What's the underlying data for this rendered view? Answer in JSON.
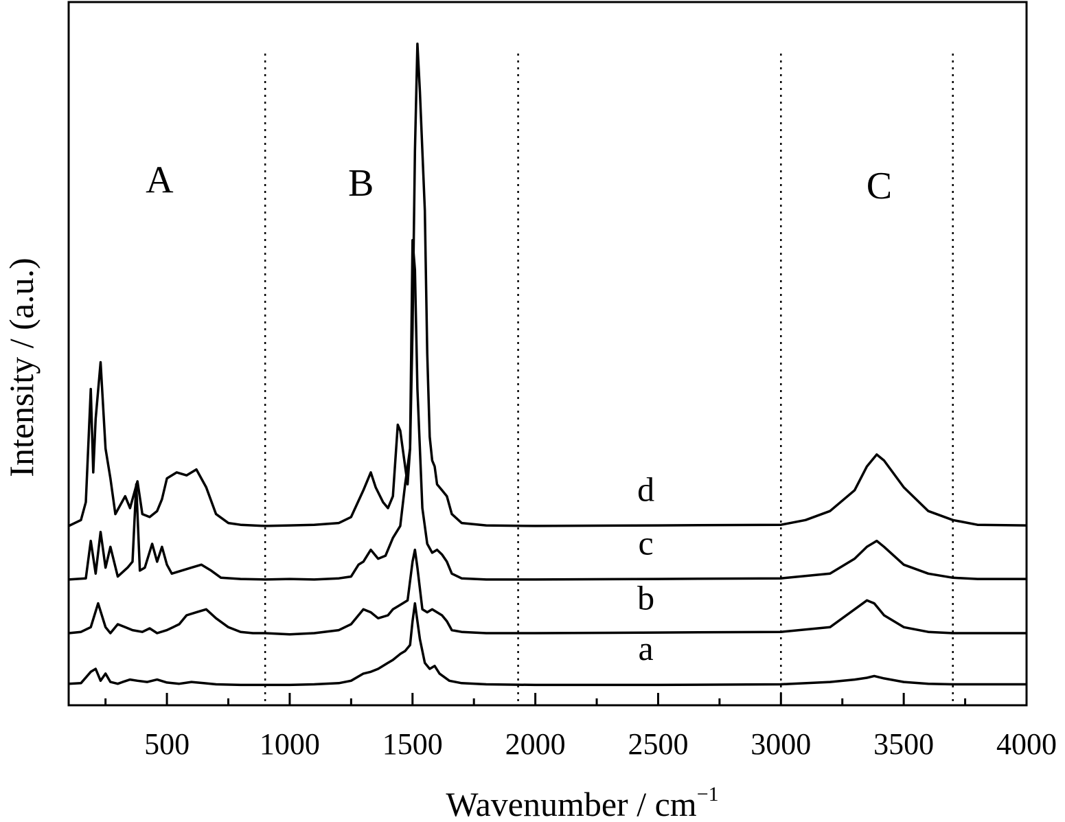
{
  "chart_data": {
    "type": "line",
    "xlabel": "Wavenumber / cm",
    "xlabel_superscript": "−1",
    "ylabel": "Intensity / (a.u.)",
    "xlim": [
      100,
      4000
    ],
    "ylim": [
      0,
      1150
    ],
    "x_ticks": [
      500,
      1000,
      1500,
      2000,
      2500,
      3000,
      3500,
      4000
    ],
    "minor_tick_step": 250,
    "y_ticks_shown": false,
    "grid": false,
    "legend": "none",
    "line_color": "#000000",
    "region_dividers": [
      900,
      1930,
      3000,
      3700
    ],
    "regions": [
      {
        "label": "A",
        "x": 470,
        "y": 830
      },
      {
        "label": "B",
        "x": 1290,
        "y": 825
      },
      {
        "label": "C",
        "x": 3400,
        "y": 820
      }
    ],
    "series": [
      {
        "name": "a",
        "label_x": 2450,
        "label_y": 45,
        "x": [
          100,
          150,
          190,
          210,
          230,
          250,
          270,
          290,
          300,
          320,
          350,
          380,
          420,
          460,
          500,
          550,
          600,
          650,
          700,
          800,
          900,
          1000,
          1100,
          1200,
          1250,
          1300,
          1330,
          1360,
          1400,
          1420,
          1450,
          1470,
          1490,
          1500,
          1510,
          1530,
          1550,
          1570,
          1590,
          1610,
          1650,
          1700,
          1800,
          2000,
          2500,
          3000,
          3200,
          3300,
          3350,
          3380,
          3420,
          3500,
          3600,
          3700,
          3800,
          4000
        ],
        "y": [
          5,
          6,
          25,
          30,
          10,
          22,
          8,
          6,
          5,
          8,
          12,
          10,
          8,
          12,
          7,
          5,
          8,
          6,
          4,
          3,
          3,
          3,
          4,
          6,
          10,
          22,
          25,
          30,
          40,
          45,
          55,
          60,
          70,
          110,
          140,
          80,
          40,
          30,
          35,
          22,
          10,
          6,
          4,
          3,
          3,
          4,
          8,
          12,
          15,
          18,
          14,
          8,
          5,
          4,
          4,
          4
        ]
      },
      {
        "name": "b",
        "label_x": 2450,
        "label_y": 130,
        "x": [
          100,
          150,
          190,
          220,
          250,
          270,
          300,
          330,
          360,
          400,
          430,
          460,
          500,
          550,
          580,
          620,
          660,
          700,
          750,
          800,
          850,
          900,
          1000,
          1100,
          1200,
          1250,
          1300,
          1330,
          1360,
          1400,
          1420,
          1440,
          1460,
          1480,
          1500,
          1510,
          1520,
          1540,
          1560,
          1580,
          1600,
          1620,
          1640,
          1660,
          1700,
          1800,
          2000,
          2500,
          3000,
          3200,
          3300,
          3350,
          3380,
          3420,
          3500,
          3600,
          3700,
          3800,
          4000
        ],
        "y": [
          90,
          92,
          100,
          140,
          100,
          90,
          105,
          100,
          95,
          92,
          98,
          90,
          95,
          105,
          120,
          125,
          130,
          115,
          100,
          92,
          90,
          90,
          88,
          90,
          95,
          105,
          130,
          125,
          115,
          120,
          130,
          135,
          140,
          145,
          210,
          230,
          200,
          130,
          125,
          130,
          125,
          120,
          110,
          95,
          92,
          90,
          90,
          91,
          92,
          100,
          130,
          145,
          140,
          120,
          100,
          92,
          90,
          90,
          90
        ]
      },
      {
        "name": "c",
        "label_x": 2450,
        "label_y": 222,
        "x": [
          100,
          170,
          190,
          210,
          230,
          250,
          270,
          300,
          340,
          360,
          375,
          390,
          410,
          440,
          460,
          480,
          500,
          520,
          560,
          600,
          640,
          680,
          720,
          800,
          900,
          1000,
          1100,
          1200,
          1250,
          1280,
          1300,
          1330,
          1360,
          1390,
          1420,
          1450,
          1470,
          1490,
          1500,
          1510,
          1520,
          1540,
          1560,
          1580,
          1600,
          1620,
          1640,
          1660,
          1700,
          1800,
          2000,
          2500,
          3000,
          3200,
          3300,
          3350,
          3390,
          3420,
          3500,
          3600,
          3700,
          3800,
          4000
        ],
        "y": [
          180,
          182,
          245,
          190,
          260,
          200,
          235,
          185,
          200,
          210,
          340,
          195,
          200,
          240,
          210,
          235,
          205,
          190,
          195,
          200,
          205,
          195,
          183,
          181,
          180,
          181,
          180,
          182,
          185,
          205,
          210,
          230,
          215,
          220,
          250,
          270,
          340,
          400,
          750,
          700,
          500,
          300,
          240,
          225,
          230,
          222,
          210,
          190,
          182,
          180,
          180,
          181,
          182,
          190,
          215,
          235,
          245,
          235,
          205,
          190,
          183,
          181,
          181
        ]
      },
      {
        "name": "d",
        "label_x": 2450,
        "label_y": 312,
        "x": [
          100,
          150,
          170,
          190,
          200,
          210,
          230,
          250,
          270,
          290,
          310,
          330,
          350,
          370,
          380,
          400,
          430,
          460,
          480,
          500,
          540,
          580,
          620,
          660,
          700,
          750,
          800,
          900,
          1000,
          1100,
          1200,
          1250,
          1300,
          1330,
          1350,
          1380,
          1400,
          1420,
          1440,
          1450,
          1470,
          1480,
          1490,
          1500,
          1510,
          1520,
          1530,
          1550,
          1560,
          1570,
          1580,
          1590,
          1600,
          1620,
          1640,
          1660,
          1700,
          1800,
          2000,
          2500,
          3000,
          3100,
          3200,
          3300,
          3350,
          3390,
          3420,
          3500,
          3600,
          3700,
          3800,
          4000
        ],
        "y": [
          270,
          280,
          310,
          500,
          360,
          450,
          545,
          400,
          350,
          290,
          305,
          320,
          300,
          330,
          345,
          290,
          285,
          295,
          315,
          350,
          360,
          355,
          365,
          335,
          290,
          275,
          272,
          270,
          271,
          272,
          275,
          285,
          330,
          360,
          335,
          310,
          300,
          320,
          440,
          430,
          370,
          340,
          400,
          600,
          900,
          1080,
          1000,
          800,
          560,
          420,
          380,
          370,
          340,
          330,
          320,
          290,
          275,
          271,
          270,
          271,
          272,
          280,
          295,
          330,
          370,
          390,
          380,
          335,
          295,
          280,
          272,
          271
        ]
      }
    ]
  }
}
